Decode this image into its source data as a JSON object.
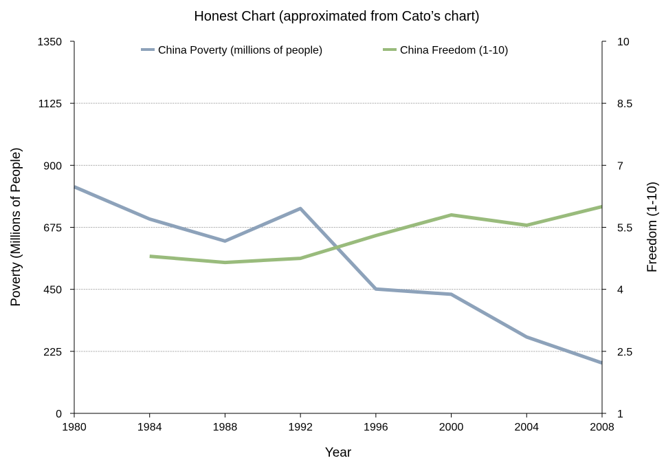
{
  "chart_data": {
    "type": "line",
    "title": "Honest Chart (approximated from Cato’s chart)",
    "xlabel": "Year",
    "ylabel": "Poverty (Millions of People)",
    "y2label": "Freedom (1-10)",
    "x": [
      1980,
      1984,
      1988,
      1992,
      1996,
      2000,
      2004,
      2008
    ],
    "xlim": [
      1980,
      2008
    ],
    "ylim": [
      0,
      1350
    ],
    "y2lim": [
      1,
      10
    ],
    "y_ticks": [
      "0",
      "225",
      "450",
      "675",
      "900",
      "1125",
      "1350"
    ],
    "y2_ticks": [
      "1",
      "2.5",
      "4",
      "5.5",
      "7",
      "8.5",
      "10"
    ],
    "grid": true,
    "legend_position": "top",
    "series": [
      {
        "name": "China Poverty (millions of people)",
        "axis": "left",
        "color": "#8da2ba",
        "values": [
          822,
          705,
          625,
          743,
          451,
          432,
          277,
          183
        ]
      },
      {
        "name": "China Freedom (1-10)",
        "axis": "right",
        "color": "#99bb7c",
        "values": [
          null,
          4.8,
          4.65,
          4.75,
          5.3,
          5.8,
          5.55,
          6.0
        ]
      }
    ]
  }
}
